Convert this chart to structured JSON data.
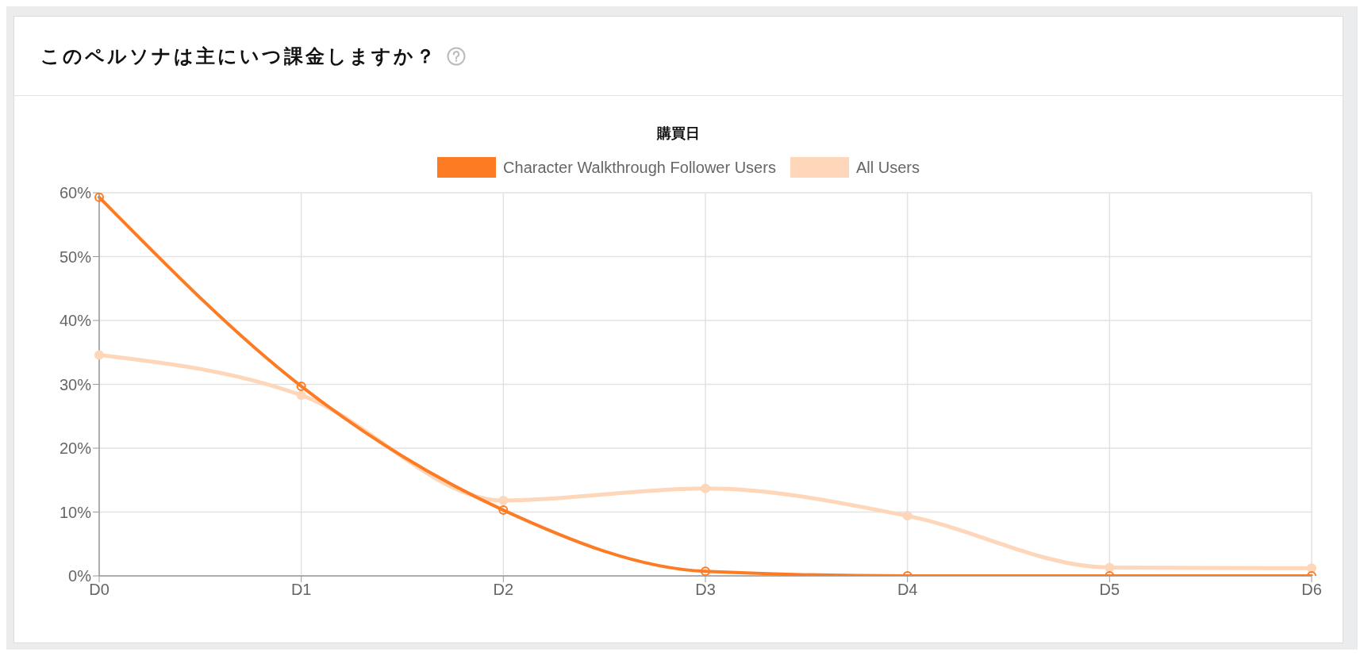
{
  "chart_data": {
    "type": "line",
    "title": "このペルソナは主にいつ課金しますか？",
    "subtitle": "購買日",
    "categories": [
      "D0",
      "D1",
      "D2",
      "D3",
      "D4",
      "D5",
      "D6"
    ],
    "series": [
      {
        "name": "Character Walkthrough Follower Users",
        "color": "#fd7b23",
        "values": [
          59.3,
          29.7,
          10.3,
          0.7,
          0,
          0,
          0
        ]
      },
      {
        "name": "All Users",
        "color": "#fed6ba",
        "values": [
          34.6,
          28.3,
          11.8,
          13.7,
          9.4,
          1.3,
          1.2
        ]
      }
    ],
    "ylim": [
      0,
      60
    ],
    "yticks": [
      {
        "value": 0,
        "label": "0%"
      },
      {
        "value": 10,
        "label": "10%"
      },
      {
        "value": 20,
        "label": "20%"
      },
      {
        "value": 30,
        "label": "30%"
      },
      {
        "value": 40,
        "label": "40%"
      },
      {
        "value": 50,
        "label": "50%"
      },
      {
        "value": 60,
        "label": "60%"
      }
    ],
    "grid": true,
    "legend": "top",
    "marker": "circle",
    "line_style": "solid"
  }
}
